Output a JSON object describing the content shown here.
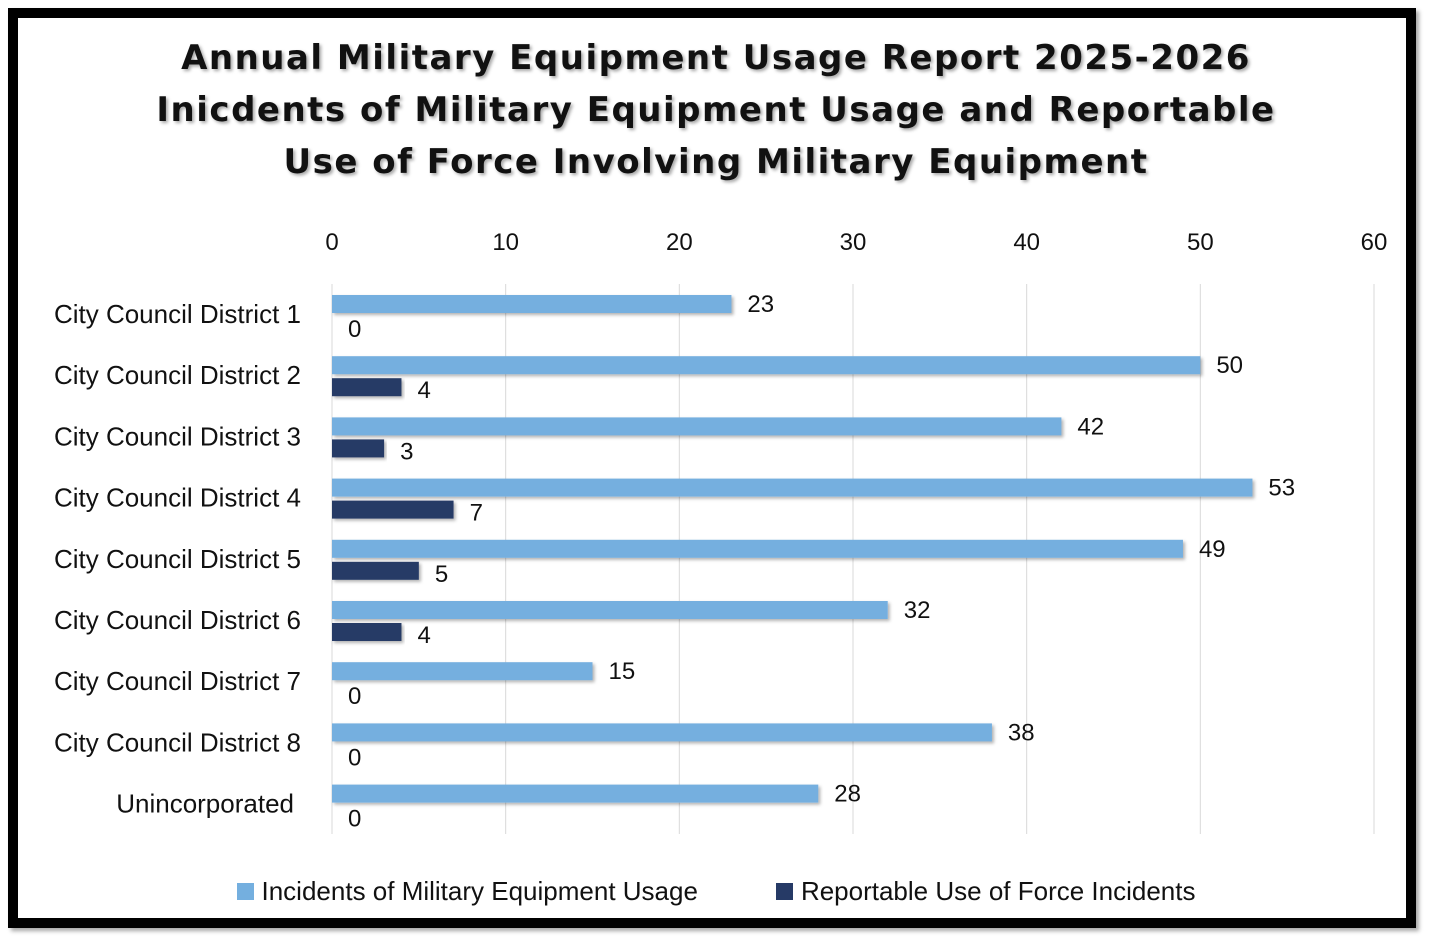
{
  "chart_data": {
    "type": "bar",
    "orientation": "horizontal",
    "title_lines": [
      "Annual Military Equipment Usage Report 2025-2026",
      "Inicdents of Military Equipment Usage and Reportable",
      "Use of Force Involving Military Equipment"
    ],
    "categories": [
      "City Council District 1",
      "City Council District 2",
      "City Council District 3",
      "City Council District 4",
      "City Council District 5",
      "City Council District 6",
      "City Council District 7",
      "City Council District 8",
      "Unincorporated"
    ],
    "series": [
      {
        "name": "Incidents of Military Equipment Usage",
        "color": "#74afdf",
        "values": [
          23,
          50,
          42,
          53,
          49,
          32,
          15,
          38,
          28
        ]
      },
      {
        "name": "Reportable Use of Force Incidents",
        "color": "#263a66",
        "values": [
          0,
          4,
          3,
          7,
          5,
          4,
          0,
          0,
          0
        ]
      }
    ],
    "xlim": [
      0,
      60
    ],
    "xticks": [
      0,
      10,
      20,
      30,
      40,
      50,
      60
    ],
    "x_axis_position": "top",
    "grid": true,
    "legend_position": "bottom",
    "data_labels": true
  }
}
